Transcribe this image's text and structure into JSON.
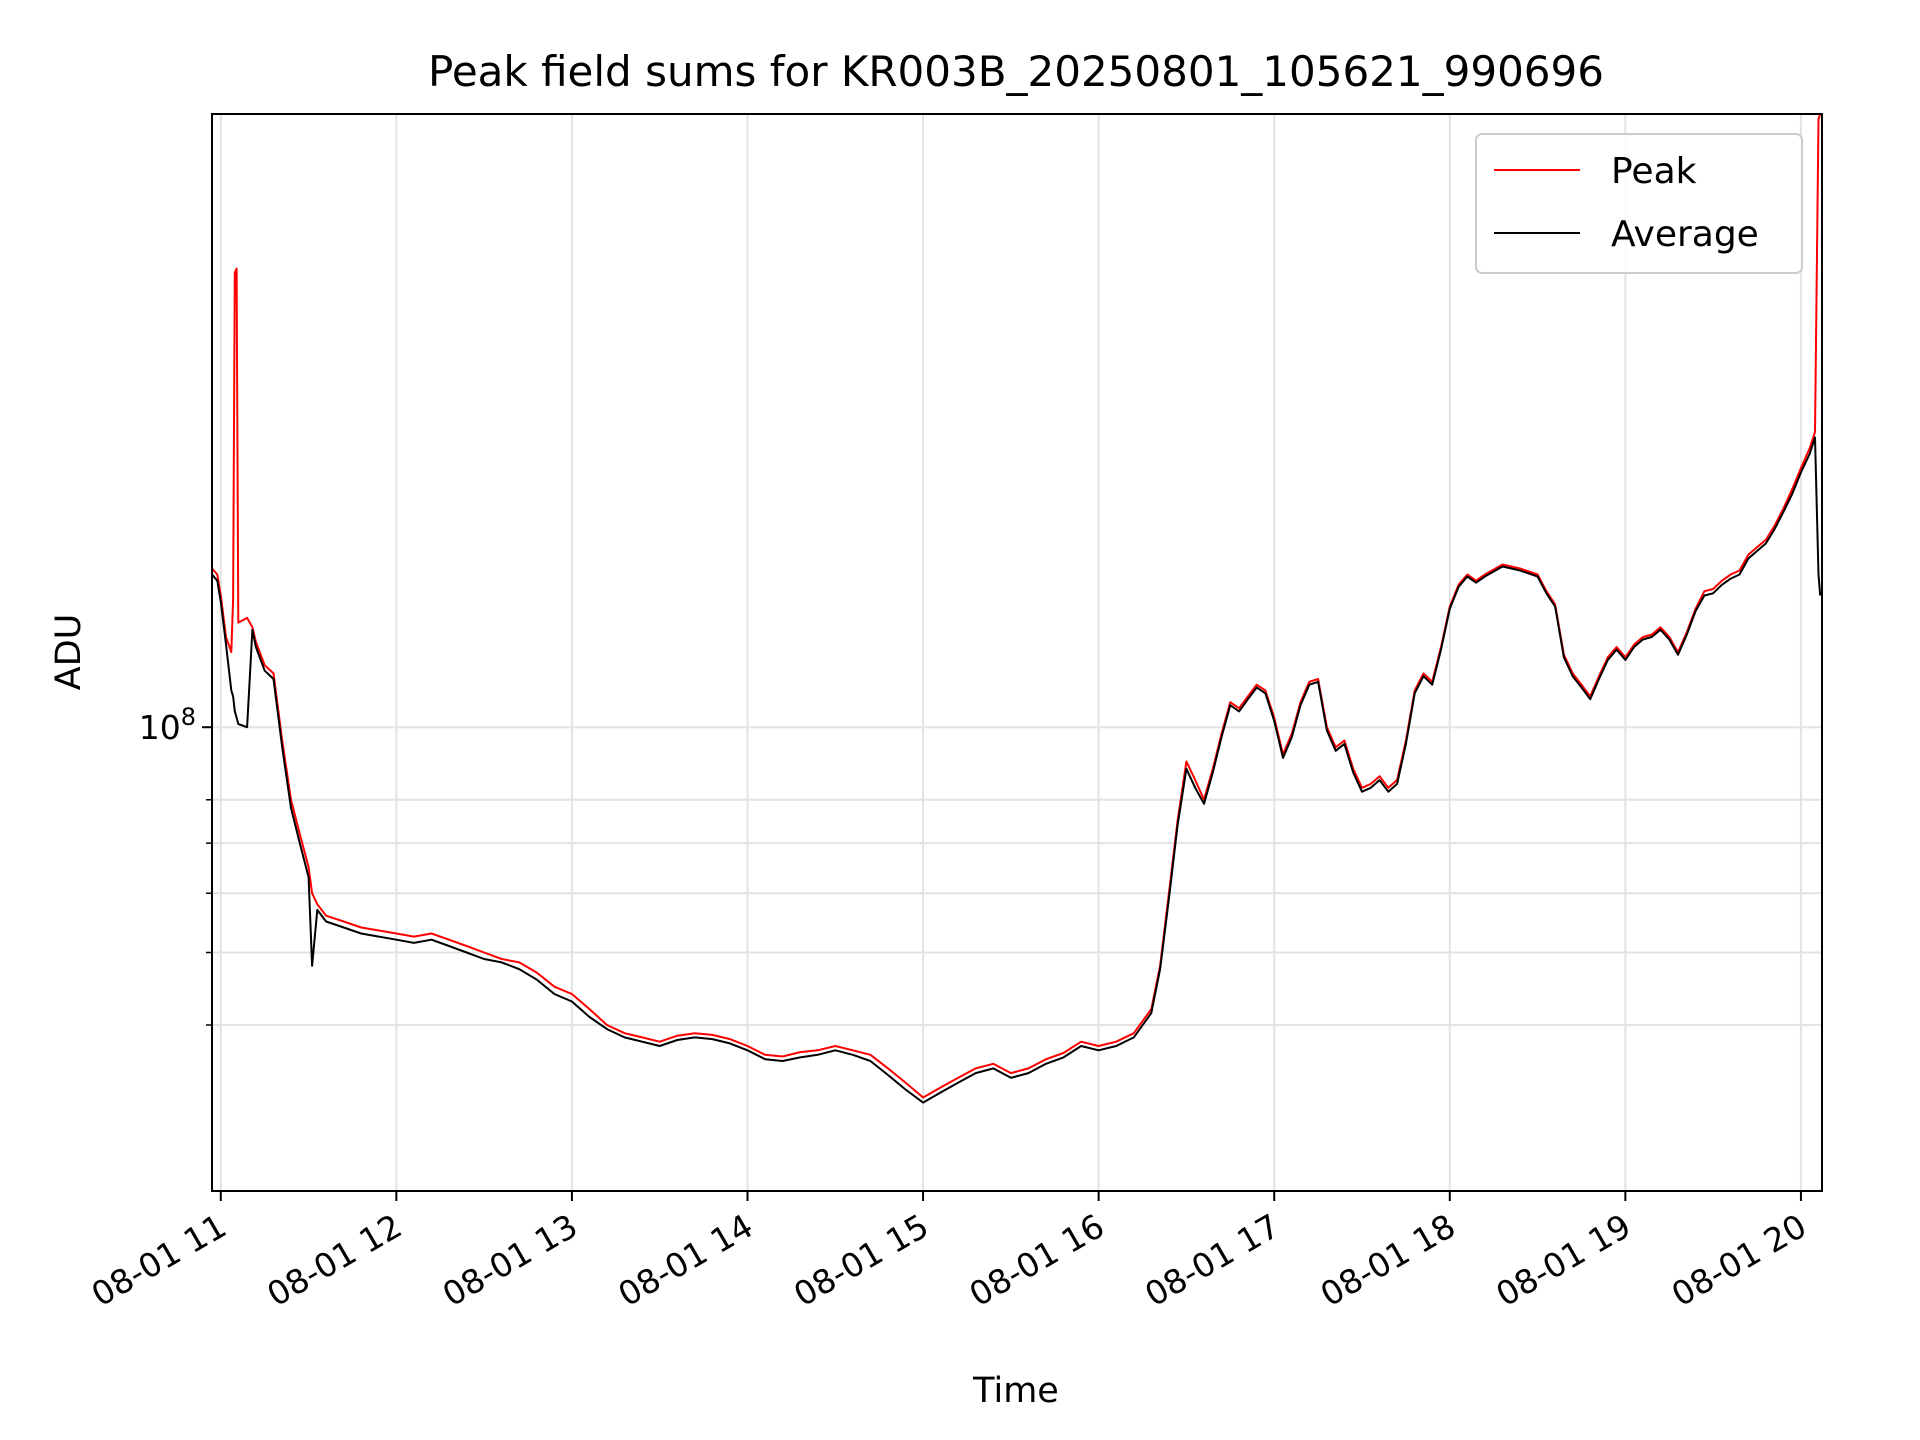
{
  "chart_data": {
    "type": "line",
    "title": "Peak field sums for KR003B_20250801_105621_990696",
    "xlabel": "Time",
    "ylabel": "ADU",
    "y_scale": "log",
    "grid": true,
    "legend_placement": "top-right",
    "xlim_hours": [
      10.95,
      20.12
    ],
    "ylim": [
      24000000,
      660000000
    ],
    "x_tick_values": [
      11,
      12,
      13,
      14,
      15,
      16,
      17,
      18,
      19,
      20
    ],
    "x_tick_labels": [
      "08-01 11",
      "08-01 12",
      "08-01 13",
      "08-01 14",
      "08-01 15",
      "08-01 16",
      "08-01 17",
      "08-01 18",
      "08-01 19",
      "08-01 20"
    ],
    "y_major_tick": {
      "value": 100000000,
      "base": "10",
      "exponent": "8"
    },
    "y_minor_ticks": [
      40000000,
      50000000,
      60000000,
      70000000,
      80000000
    ],
    "colors": {
      "peak": "#ff0000",
      "average": "#000000"
    },
    "series": [
      {
        "name": "Peak",
        "color": "#ff0000",
        "x": [
          10.95,
          10.98,
          11.0,
          11.03,
          11.06,
          11.07,
          11.08,
          11.09,
          11.1,
          11.15,
          11.18,
          11.2,
          11.25,
          11.3,
          11.35,
          11.4,
          11.45,
          11.5,
          11.52,
          11.55,
          11.6,
          11.7,
          11.8,
          11.9,
          12.0,
          12.1,
          12.2,
          12.3,
          12.4,
          12.5,
          12.6,
          12.7,
          12.8,
          12.9,
          13.0,
          13.1,
          13.2,
          13.3,
          13.4,
          13.5,
          13.6,
          13.7,
          13.8,
          13.9,
          14.0,
          14.1,
          14.2,
          14.3,
          14.4,
          14.5,
          14.6,
          14.7,
          14.8,
          14.9,
          15.0,
          15.1,
          15.2,
          15.3,
          15.4,
          15.5,
          15.6,
          15.7,
          15.8,
          15.9,
          16.0,
          16.1,
          16.2,
          16.3,
          16.35,
          16.4,
          16.45,
          16.5,
          16.55,
          16.6,
          16.65,
          16.7,
          16.75,
          16.8,
          16.85,
          16.9,
          16.95,
          17.0,
          17.05,
          17.1,
          17.15,
          17.2,
          17.25,
          17.3,
          17.35,
          17.4,
          17.45,
          17.5,
          17.55,
          17.6,
          17.65,
          17.7,
          17.75,
          17.8,
          17.85,
          17.9,
          17.95,
          18.0,
          18.05,
          18.1,
          18.15,
          18.2,
          18.3,
          18.4,
          18.5,
          18.55,
          18.6,
          18.65,
          18.7,
          18.75,
          18.8,
          18.85,
          18.9,
          18.95,
          19.0,
          19.05,
          19.1,
          19.15,
          19.2,
          19.25,
          19.3,
          19.35,
          19.4,
          19.45,
          19.5,
          19.55,
          19.6,
          19.65,
          19.7,
          19.75,
          19.8,
          19.85,
          19.9,
          19.95,
          20.0,
          20.05,
          20.08,
          20.1,
          20.11
        ],
        "values": [
          163000000,
          160000000,
          150000000,
          132000000,
          126000000,
          148000000,
          405000000,
          410000000,
          138000000,
          140000000,
          136000000,
          130000000,
          121000000,
          118000000,
          96000000,
          80000000,
          72000000,
          65000000,
          60000000,
          58000000,
          56000000,
          55000000,
          54000000,
          53500000,
          53000000,
          52500000,
          53000000,
          52000000,
          51000000,
          50000000,
          49000000,
          48500000,
          47000000,
          45000000,
          44000000,
          42000000,
          40000000,
          39000000,
          38500000,
          38000000,
          38700000,
          39000000,
          38800000,
          38300000,
          37500000,
          36500000,
          36300000,
          36800000,
          37000000,
          37500000,
          37000000,
          36500000,
          35000000,
          33500000,
          32000000,
          33000000,
          34000000,
          35000000,
          35500000,
          34500000,
          35000000,
          36000000,
          36700000,
          38000000,
          37500000,
          38000000,
          39000000,
          42000000,
          48000000,
          60000000,
          75000000,
          90000000,
          85000000,
          80000000,
          88000000,
          98000000,
          108000000,
          106000000,
          110000000,
          114000000,
          112000000,
          103000000,
          92000000,
          98000000,
          108000000,
          115000000,
          116000000,
          100000000,
          94000000,
          96000000,
          88000000,
          83000000,
          84000000,
          86000000,
          83000000,
          85000000,
          96000000,
          112000000,
          118000000,
          115000000,
          128000000,
          145000000,
          155000000,
          160000000,
          157000000,
          160000000,
          165000000,
          163000000,
          160000000,
          152000000,
          146000000,
          125000000,
          118000000,
          114000000,
          110000000,
          117000000,
          124000000,
          128000000,
          124000000,
          129000000,
          132000000,
          133000000,
          136000000,
          132000000,
          126000000,
          134000000,
          144000000,
          152000000,
          153000000,
          157000000,
          160000000,
          162000000,
          170000000,
          174000000,
          178000000,
          186000000,
          196000000,
          208000000,
          222000000,
          236000000,
          248000000,
          650000000,
          660000000
        ]
      },
      {
        "name": "Average",
        "color": "#000000",
        "x": [
          10.95,
          10.98,
          11.0,
          11.03,
          11.06,
          11.07,
          11.08,
          11.09,
          11.1,
          11.15,
          11.18,
          11.2,
          11.25,
          11.3,
          11.35,
          11.4,
          11.45,
          11.5,
          11.52,
          11.55,
          11.6,
          11.7,
          11.8,
          11.9,
          12.0,
          12.1,
          12.2,
          12.3,
          12.4,
          12.5,
          12.6,
          12.7,
          12.8,
          12.9,
          13.0,
          13.1,
          13.2,
          13.3,
          13.4,
          13.5,
          13.6,
          13.7,
          13.8,
          13.9,
          14.0,
          14.1,
          14.2,
          14.3,
          14.4,
          14.5,
          14.6,
          14.7,
          14.8,
          14.9,
          15.0,
          15.1,
          15.2,
          15.3,
          15.4,
          15.5,
          15.6,
          15.7,
          15.8,
          15.9,
          16.0,
          16.1,
          16.2,
          16.3,
          16.35,
          16.4,
          16.45,
          16.5,
          16.55,
          16.6,
          16.65,
          16.7,
          16.75,
          16.8,
          16.85,
          16.9,
          16.95,
          17.0,
          17.05,
          17.1,
          17.15,
          17.2,
          17.25,
          17.3,
          17.35,
          17.4,
          17.45,
          17.5,
          17.55,
          17.6,
          17.65,
          17.7,
          17.75,
          17.8,
          17.85,
          17.9,
          17.95,
          18.0,
          18.05,
          18.1,
          18.15,
          18.2,
          18.3,
          18.4,
          18.5,
          18.55,
          18.6,
          18.65,
          18.7,
          18.75,
          18.8,
          18.85,
          18.9,
          18.95,
          19.0,
          19.05,
          19.1,
          19.15,
          19.2,
          19.25,
          19.3,
          19.35,
          19.4,
          19.45,
          19.5,
          19.55,
          19.6,
          19.65,
          19.7,
          19.75,
          19.8,
          19.85,
          19.9,
          19.95,
          20.0,
          20.05,
          20.08,
          20.1,
          20.11
        ],
        "values": [
          160000000,
          157000000,
          147000000,
          129000000,
          112000000,
          110000000,
          105000000,
          103000000,
          101000000,
          100000000,
          135000000,
          128000000,
          119000000,
          116000000,
          94000000,
          78000000,
          70000000,
          63000000,
          48000000,
          57000000,
          55000000,
          54000000,
          53000000,
          52500000,
          52000000,
          51500000,
          52000000,
          51000000,
          50000000,
          49000000,
          48500000,
          47500000,
          46000000,
          44000000,
          43000000,
          41000000,
          39500000,
          38500000,
          38000000,
          37500000,
          38200000,
          38500000,
          38300000,
          37800000,
          37000000,
          36000000,
          35800000,
          36200000,
          36500000,
          37000000,
          36500000,
          35800000,
          34300000,
          32800000,
          31500000,
          32500000,
          33500000,
          34500000,
          35000000,
          34000000,
          34500000,
          35500000,
          36200000,
          37500000,
          37000000,
          37500000,
          38500000,
          41500000,
          47500000,
          59000000,
          74000000,
          88000000,
          83000000,
          79000000,
          87000000,
          97000000,
          107000000,
          105000000,
          109000000,
          113000000,
          111000000,
          102000000,
          91000000,
          97000000,
          107000000,
          114000000,
          115000000,
          99000000,
          93000000,
          95000000,
          87000000,
          82000000,
          83000000,
          85000000,
          82000000,
          84000000,
          95000000,
          111000000,
          117000000,
          114000000,
          127000000,
          144000000,
          154000000,
          159000000,
          156000000,
          159000000,
          164000000,
          162000000,
          159000000,
          151000000,
          145000000,
          124000000,
          117000000,
          113000000,
          109000000,
          116000000,
          123000000,
          127000000,
          123000000,
          128000000,
          131000000,
          132000000,
          135000000,
          131000000,
          125000000,
          133000000,
          143000000,
          150000000,
          151000000,
          155000000,
          158000000,
          160000000,
          168000000,
          172000000,
          176000000,
          184000000,
          194000000,
          205000000,
          219000000,
          232000000,
          244000000,
          160000000,
          150000000
        ]
      }
    ]
  }
}
